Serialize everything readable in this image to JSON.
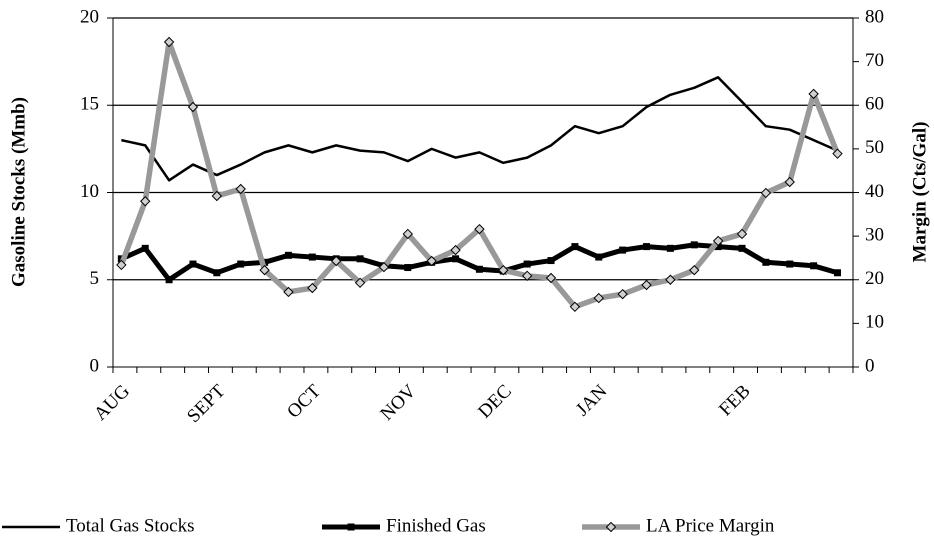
{
  "chart_data": {
    "type": "line",
    "y_label": "Gasoline Stocks (Mmb)",
    "y2_label": "Margin (Cts/Gal)",
    "categories": [
      "AUG",
      null,
      null,
      null,
      "SEPT",
      null,
      null,
      null,
      "OCT",
      null,
      null,
      null,
      "NOV",
      null,
      null,
      null,
      "DEC",
      null,
      null,
      null,
      "JAN",
      null,
      null,
      null,
      null,
      null,
      "FEB",
      null,
      null,
      null,
      null
    ],
    "ylim": [
      0,
      20
    ],
    "yticks": [
      0,
      5,
      10,
      15,
      20
    ],
    "y2lim": [
      0,
      80
    ],
    "y2ticks": [
      0,
      10,
      20,
      30,
      40,
      50,
      60,
      70,
      80
    ],
    "grid": true,
    "legend": "bottom",
    "series": [
      {
        "name": "Total Gas Stocks",
        "color": "#000000",
        "values": [
          13.0,
          12.7,
          10.7,
          11.6,
          11.0,
          11.6,
          12.3,
          12.7,
          12.3,
          12.7,
          12.4,
          12.3,
          11.8,
          12.5,
          12.0,
          12.3,
          11.7,
          12.0,
          12.7,
          13.8,
          13.4,
          13.8,
          14.9,
          15.6,
          16.0,
          16.6,
          15.2,
          13.8,
          13.6,
          13.0,
          12.4
        ]
      },
      {
        "name": "Finished Gas",
        "color": "#000000",
        "values": [
          6.2,
          6.8,
          5.0,
          5.9,
          5.4,
          5.9,
          6.0,
          6.4,
          6.3,
          6.2,
          6.2,
          5.8,
          5.7,
          6.0,
          6.2,
          5.6,
          5.5,
          5.9,
          6.1,
          6.9,
          6.3,
          6.7,
          6.9,
          6.8,
          7.0,
          6.9,
          6.8,
          6.0,
          5.9,
          5.8,
          5.4
        ]
      },
      {
        "name": "LA Price Margin",
        "color": "#999999",
        "axis": "y2",
        "values": [
          23.4,
          38.0,
          74.5,
          59.6,
          39.2,
          40.8,
          22.2,
          17.2,
          18.1,
          24.3,
          19.3,
          22.9,
          30.5,
          24.3,
          26.8,
          31.6,
          22.2,
          20.9,
          20.4,
          13.8,
          15.8,
          16.7,
          18.8,
          20.0,
          22.2,
          28.9,
          30.5,
          39.9,
          42.4,
          62.6,
          48.9
        ]
      }
    ]
  }
}
